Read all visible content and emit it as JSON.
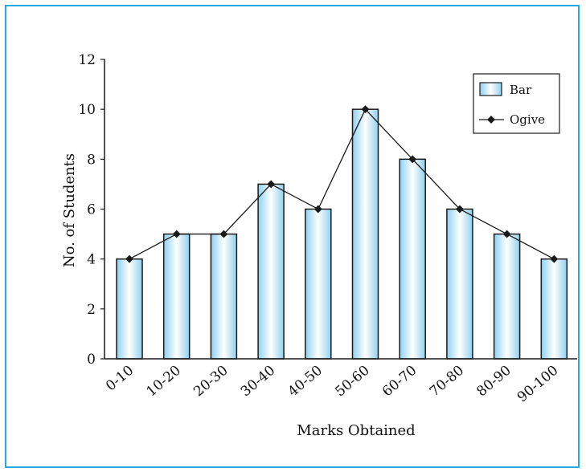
{
  "chart_data": {
    "type": "bar",
    "title": "",
    "xlabel": "Marks Obtained",
    "ylabel": "No. of Students",
    "categories": [
      "0-10",
      "10-20",
      "20-30",
      "30-40",
      "40-50",
      "50-60",
      "60-70",
      "70-80",
      "80-90",
      "90-100"
    ],
    "series": [
      {
        "name": "Bar",
        "type": "bar",
        "values": [
          4,
          5,
          5,
          7,
          6,
          10,
          8,
          6,
          5,
          4
        ]
      },
      {
        "name": "Ogive",
        "type": "line",
        "values": [
          4,
          5,
          5,
          7,
          6,
          10,
          8,
          6,
          5,
          4
        ]
      }
    ],
    "ylim": [
      0,
      12
    ],
    "yticks": [
      0,
      2,
      4,
      6,
      8,
      10,
      12
    ],
    "grid": false,
    "legend_position": "top-right",
    "colors": {
      "frame": "#27a9e1",
      "bar_edge": "#1a1a1a",
      "bar_gradient_edge": "#8fd0f0",
      "bar_gradient_center": "#ffffff",
      "line": "#1a1a1a"
    }
  }
}
